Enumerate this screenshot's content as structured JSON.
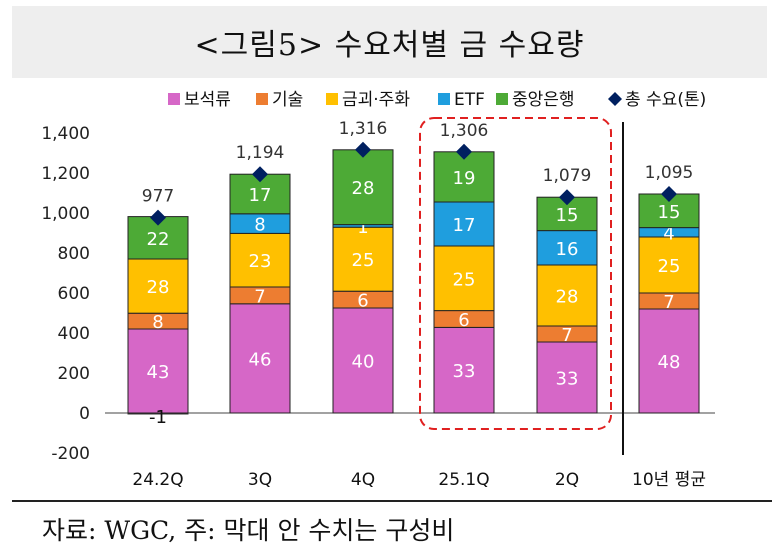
{
  "title": "<그림5>  수요처별 금 수요량",
  "footnote": "자료: WGC, 주: 막대 안 수치는 구성비",
  "chart_data": {
    "type": "bar",
    "stacked": true,
    "categories": [
      "24.2Q",
      "3Q",
      "4Q",
      "25.1Q",
      "2Q",
      "10년 평균"
    ],
    "ylim": [
      -200,
      1400
    ],
    "yticks": [
      "-200",
      "0",
      "200",
      "400",
      "600",
      "800",
      "1,000",
      "1,200",
      "1,400"
    ],
    "ytick_values": [
      -200,
      0,
      200,
      400,
      600,
      800,
      1000,
      1200,
      1400
    ],
    "legend_position": "top",
    "series": [
      {
        "name": "보석류",
        "color": "#d667c7",
        "values": [
          420,
          546,
          525,
          428,
          355,
          520
        ],
        "labels": [
          "43",
          "46",
          "40",
          "33",
          "33",
          "48"
        ]
      },
      {
        "name": "기술",
        "color": "#ed7d31",
        "values": [
          79,
          84,
          84,
          84,
          80,
          80
        ],
        "labels": [
          "8",
          "7",
          "6",
          "6",
          "7",
          "7"
        ]
      },
      {
        "name": "금괴·주화",
        "color": "#ffc000",
        "values": [
          271,
          268,
          320,
          323,
          305,
          280
        ],
        "labels": [
          "28",
          "23",
          "25",
          "25",
          "28",
          "25"
        ]
      },
      {
        "name": "ETF",
        "color": "#1f9ede",
        "values": [
          0,
          98,
          13,
          220,
          172,
          47
        ],
        "labels": [
          "",
          "8",
          "1",
          "17",
          "16",
          "4"
        ]
      },
      {
        "name": "중앙은행",
        "color": "#4daa36",
        "values": [
          212,
          198,
          374,
          251,
          167,
          168
        ],
        "labels": [
          "22",
          "17",
          "28",
          "19",
          "15",
          "15"
        ]
      }
    ],
    "negative": {
      "values": [
        -5,
        0,
        0,
        0,
        0,
        0
      ],
      "labels": [
        "-1",
        "",
        "",
        "",
        "",
        ""
      ]
    },
    "total": {
      "name": "총 수요(톤)",
      "color": "#002060",
      "values": [
        977,
        1194,
        1316,
        1306,
        1079,
        1095
      ],
      "labels": [
        "977",
        "1,194",
        "1,316",
        "1,306",
        "1,079",
        "1,095"
      ]
    },
    "highlight": {
      "categories": [
        "25.1Q",
        "2Q"
      ],
      "style": "red dashed rounded box"
    },
    "separator_before": "10년 평균"
  }
}
